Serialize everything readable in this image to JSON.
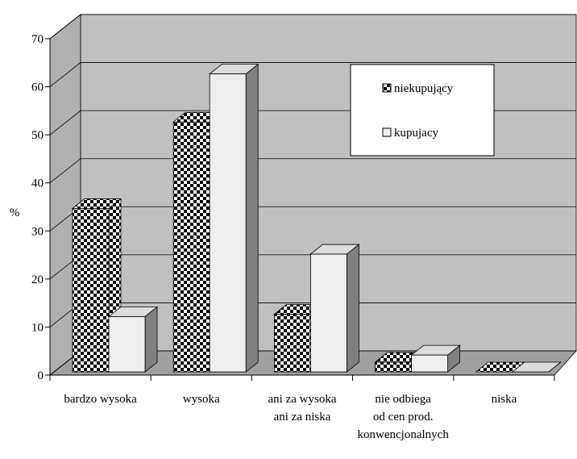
{
  "chart_data": {
    "type": "bar3d",
    "y_label": "%",
    "categories": [
      "bardzo wysoka",
      "wysoka",
      "ani za wysoka\nani za niska",
      "nie odbiega\nod cen prod.\nkonwencjonalnych",
      "niska"
    ],
    "series": [
      {
        "name": "niekupujący",
        "color": "checker",
        "values": [
          34,
          52,
          12,
          2,
          0
        ]
      },
      {
        "name": "kupujacy",
        "color": "#eeeeee",
        "values": [
          11.5,
          62,
          24.5,
          3.5,
          0
        ]
      }
    ],
    "ylim": [
      0,
      70
    ],
    "yticks": [
      0,
      10,
      20,
      30,
      40,
      50,
      60,
      70
    ],
    "grid": true,
    "legend": "upper right"
  }
}
